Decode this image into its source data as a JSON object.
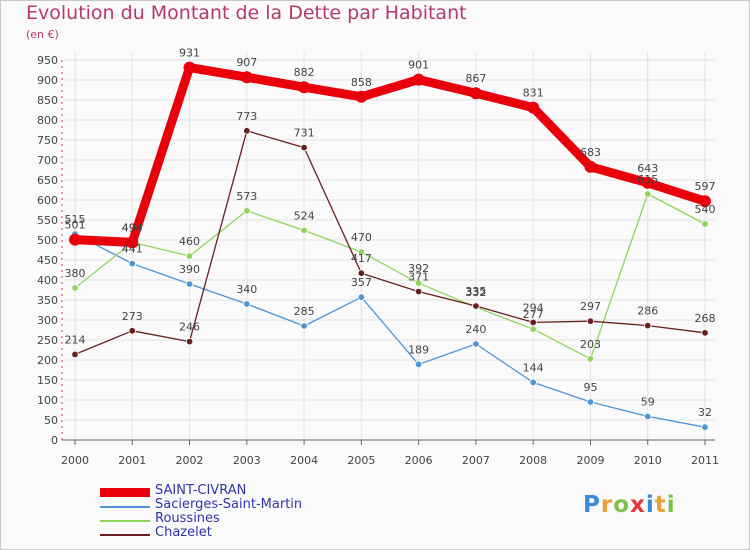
{
  "chart_data": {
    "type": "line",
    "title": "Evolution du Montant de la Dette par Habitant",
    "subtitle": "(en €)",
    "x": [
      "2000",
      "2001",
      "2002",
      "2003",
      "2004",
      "2005",
      "2006",
      "2007",
      "2008",
      "2009",
      "2010",
      "2011"
    ],
    "yticks": [
      0,
      50,
      100,
      150,
      200,
      250,
      300,
      350,
      400,
      450,
      500,
      550,
      600,
      650,
      700,
      750,
      800,
      850,
      900,
      950
    ],
    "ylim": [
      0,
      950
    ],
    "series": [
      {
        "name": "SAINT-CIVRAN",
        "color": "#e8000b",
        "values": [
          501,
          494,
          931,
          907,
          882,
          858,
          901,
          867,
          831,
          683,
          643,
          597
        ]
      },
      {
        "name": "Sacierges-Saint-Martin",
        "color": "#4f95d6",
        "values": [
          515,
          441,
          390,
          340,
          285,
          357,
          189,
          240,
          144,
          95,
          59,
          32
        ]
      },
      {
        "name": "Roussines",
        "color": "#8dd65a",
        "values": [
          380,
          494,
          460,
          573,
          524,
          470,
          392,
          332,
          277,
          203,
          615,
          540
        ]
      },
      {
        "name": "Chazelet",
        "color": "#6b1f1f",
        "values": [
          214,
          273,
          246,
          773,
          731,
          417,
          371,
          335,
          294,
          297,
          286,
          268
        ]
      }
    ]
  },
  "legend": [
    "SAINT-CIVRAN",
    "Sacierges-Saint-Martin",
    "Roussines",
    "Chazelet"
  ],
  "logo": {
    "letters": [
      "P",
      "r",
      "o",
      "x",
      "i",
      "t",
      "i"
    ],
    "colors": [
      "#3f88d6",
      "#e8a03a",
      "#7cc24a",
      "#e03a3a",
      "#3f88d6",
      "#e8a03a",
      "#7cc24a"
    ]
  }
}
